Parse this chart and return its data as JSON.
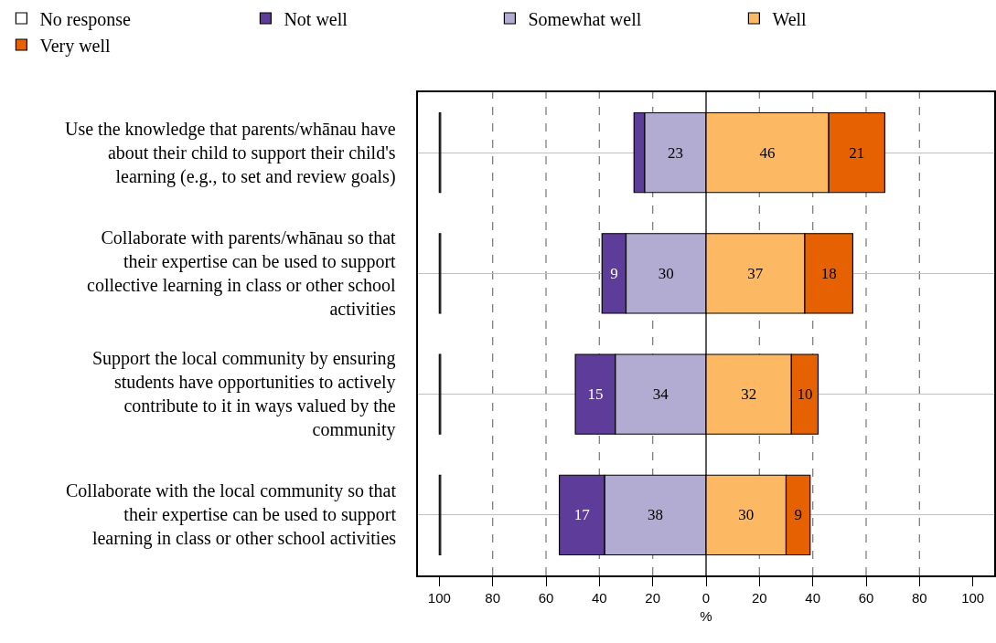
{
  "chart_data": {
    "type": "bar",
    "orientation": "horizontal",
    "categories": [
      "Use the knowledge that parents/whānau have about their child to support their child's learning (e.g., to set and review goals)",
      "Collaborate with parents/whānau so that their expertise can be used to support collective learning in class or other school activities",
      "Support the local community by ensuring students have opportunities to actively contribute to it in ways valued by the community",
      "Collaborate with the local community so that their expertise can be used to support learning in class or other school activities"
    ],
    "series": [
      {
        "name": "No response",
        "color": "#ffffff",
        "base": [
          -100,
          -100,
          -100,
          -100
        ],
        "values": [
          0.5,
          0.5,
          0.5,
          0.5
        ],
        "value_labels": [
          null,
          null,
          null,
          null
        ]
      },
      {
        "name": "Not well",
        "color": "#5e3c99",
        "base": [
          -27,
          -39,
          -49,
          -55
        ],
        "values": [
          4,
          9,
          15,
          17
        ],
        "value_labels": [
          null,
          "9",
          "15",
          "17"
        ]
      },
      {
        "name": "Somewhat well",
        "color": "#b2abd2",
        "base": [
          -23,
          -30,
          -34,
          -38
        ],
        "values": [
          23,
          30,
          34,
          38
        ],
        "value_labels": [
          "23",
          "30",
          "34",
          "38"
        ]
      },
      {
        "name": "Well",
        "color": "#fdb863",
        "base": [
          0,
          0,
          0,
          0
        ],
        "values": [
          46,
          37,
          32,
          30
        ],
        "value_labels": [
          "46",
          "37",
          "32",
          "30"
        ]
      },
      {
        "name": "Very well",
        "color": "#e66101",
        "base": [
          46,
          37,
          32,
          30
        ],
        "values": [
          21,
          18,
          10,
          9
        ],
        "value_labels": [
          "21",
          "18",
          "10",
          "9"
        ]
      }
    ],
    "xlabel": "%",
    "xlim": [
      -108,
      108
    ],
    "xticks": [
      {
        "value": -100,
        "label": "100"
      },
      {
        "value": -80,
        "label": "80"
      },
      {
        "value": -60,
        "label": "60"
      },
      {
        "value": -40,
        "label": "40"
      },
      {
        "value": -20,
        "label": "20"
      },
      0,
      20,
      40,
      60,
      80,
      100
    ],
    "ref_lines": [
      {
        "axis": "x",
        "value": -80,
        "color": "#808080",
        "line_style": "dashed"
      },
      {
        "axis": "x",
        "value": -60,
        "color": "#808080",
        "line_style": "dashed"
      },
      {
        "axis": "x",
        "value": -40,
        "color": "#808080",
        "line_style": "dashed"
      },
      {
        "axis": "x",
        "value": -20,
        "color": "#808080",
        "line_style": "dashed"
      },
      {
        "axis": "x",
        "value": 0,
        "color": "#000000",
        "line_style": "solid"
      },
      {
        "axis": "x",
        "value": 20,
        "color": "#808080",
        "line_style": "dashed"
      },
      {
        "axis": "x",
        "value": 40,
        "color": "#808080",
        "line_style": "dashed"
      },
      {
        "axis": "x",
        "value": 60,
        "color": "#808080",
        "line_style": "dashed"
      },
      {
        "axis": "x",
        "value": 80,
        "color": "#808080",
        "line_style": "dashed"
      }
    ],
    "grid": "y",
    "legend": "top",
    "tick_labels": "x"
  }
}
